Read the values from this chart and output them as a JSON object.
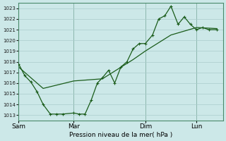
{
  "xlabel": "Pression niveau de la mer( hPa )",
  "background_color": "#cce8e8",
  "grid_color": "#aacccc",
  "line_color": "#1a5c1a",
  "spine_color": "#4a8a6a",
  "ylim": [
    1012.5,
    1023.5
  ],
  "yticks": [
    1013,
    1014,
    1015,
    1016,
    1017,
    1018,
    1019,
    1020,
    1021,
    1022,
    1023
  ],
  "day_labels": [
    "Sam",
    "Mar",
    "Dim",
    "Lun"
  ],
  "day_positions": [
    0.0,
    0.27,
    0.62,
    0.87
  ],
  "xlim": [
    0.0,
    1.0
  ],
  "line1_x": [
    0.0,
    0.03,
    0.06,
    0.09,
    0.12,
    0.155,
    0.185,
    0.215,
    0.27,
    0.295,
    0.325,
    0.355,
    0.385,
    0.41,
    0.44,
    0.47,
    0.5,
    0.53,
    0.56,
    0.59,
    0.62,
    0.655,
    0.685,
    0.715,
    0.745,
    0.78,
    0.81,
    0.84,
    0.87,
    0.9,
    0.93,
    0.97
  ],
  "line1_y": [
    1017.8,
    1016.7,
    1016.1,
    1015.2,
    1014.0,
    1013.1,
    1013.1,
    1013.1,
    1013.2,
    1013.1,
    1013.1,
    1014.4,
    1016.0,
    1016.5,
    1017.2,
    1016.0,
    1017.5,
    1018.0,
    1019.2,
    1019.7,
    1019.7,
    1020.5,
    1022.0,
    1022.3,
    1023.2,
    1021.5,
    1022.2,
    1021.5,
    1021.0,
    1021.2,
    1021.0,
    1021.0
  ],
  "line2_x": [
    0.0,
    0.12,
    0.27,
    0.41,
    0.56,
    0.62,
    0.745,
    0.87,
    0.97
  ],
  "line2_y": [
    1017.5,
    1015.5,
    1016.2,
    1016.4,
    1018.2,
    1019.0,
    1020.5,
    1021.2,
    1021.1
  ]
}
